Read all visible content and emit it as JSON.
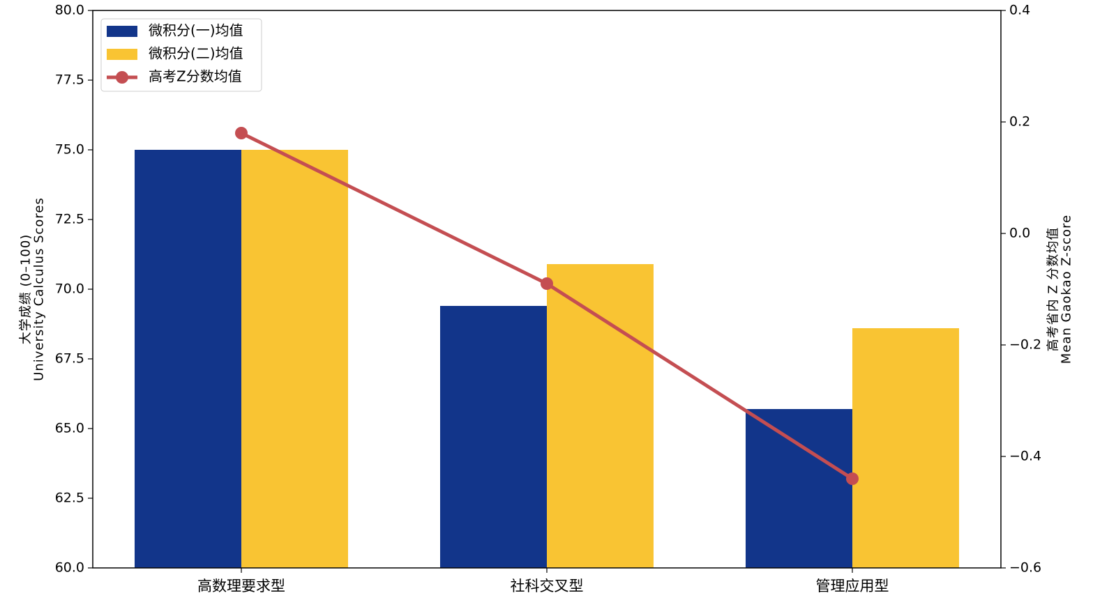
{
  "chart_data": {
    "type": "bar",
    "categories": [
      "高数理要求型",
      "社科交叉型",
      "管理应用型"
    ],
    "series": [
      {
        "name": "微积分(一)均值",
        "color": "#12358a",
        "values": [
          75.0,
          69.4,
          65.7
        ]
      },
      {
        "name": "微积分(二)均值",
        "color": "#f9c433",
        "values": [
          75.0,
          70.9,
          68.6
        ]
      },
      {
        "name": "高考Z分数均值",
        "color": "#c44e52",
        "type": "line",
        "axis": "y2",
        "values": [
          0.18,
          -0.09,
          -0.44
        ]
      }
    ],
    "ylabel": [
      "大学成绩 (0–100)",
      "University Calculus Scores"
    ],
    "y2label": [
      "高考省内 Z 分数均值",
      "Mean Gaokao Z-score"
    ],
    "ylim": [
      60,
      80
    ],
    "yticks": [
      {
        "value": 60,
        "label": "60.0"
      },
      62.5,
      {
        "value": 65,
        "label": "65.0"
      },
      67.5,
      {
        "value": 70,
        "label": "70.0"
      },
      72.5,
      {
        "value": 75,
        "label": "75.0"
      },
      77.5,
      {
        "value": 80,
        "label": "80.0"
      }
    ],
    "y2lim": [
      -0.6,
      0.4
    ],
    "y2ticks": [
      {
        "value": -0.6,
        "label": "−0.6"
      },
      {
        "value": -0.4,
        "label": "−0.4"
      },
      {
        "value": -0.2,
        "label": "−0.2"
      },
      {
        "value": 0,
        "label": "0.0"
      },
      0.2,
      0.4
    ],
    "legend": "upper left",
    "grid": false
  }
}
